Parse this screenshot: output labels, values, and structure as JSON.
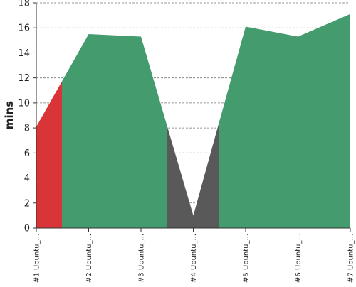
{
  "chart_data": {
    "type": "area",
    "title": "",
    "xlabel": "",
    "ylabel": "mins",
    "categories": [
      "#1 Ubuntu_...",
      "#2 Ubuntu_...",
      "#3 Ubuntu_...",
      "#4 Ubuntu_...",
      "#5 Ubuntu_...",
      "#6 Ubuntu_...",
      "#7 Ubuntu_..."
    ],
    "values": [
      8.1,
      15.5,
      15.3,
      1.0,
      16.1,
      15.3,
      17.1
    ],
    "ylim": [
      0,
      18
    ],
    "yticks": [
      0,
      2,
      4,
      6,
      8,
      10,
      12,
      14,
      16,
      18
    ],
    "grid": true,
    "legend": "none",
    "status_colors": {
      "red": "#d93438",
      "green": "#449c6e",
      "gray": "#595959"
    }
  }
}
